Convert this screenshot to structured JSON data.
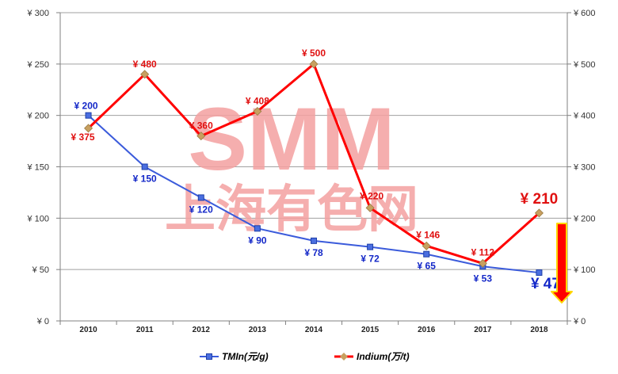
{
  "chart_data": {
    "type": "line",
    "categories": [
      "2010",
      "2011",
      "2012",
      "2013",
      "2014",
      "2015",
      "2016",
      "2017",
      "2018"
    ],
    "series": [
      {
        "name": "TMIn(元/g)",
        "axis": "left",
        "color": "#3b5bdb",
        "marker_color": "#1e3fa8",
        "values": [
          200,
          150,
          120,
          90,
          78,
          72,
          65,
          53,
          47
        ],
        "labels": [
          "¥ 200",
          "¥ 150",
          "¥ 120",
          "¥ 90",
          "¥ 78",
          "¥ 72",
          "¥ 65",
          "¥ 53",
          "¥ 47"
        ]
      },
      {
        "name": "Indium(万/t)",
        "axis": "right",
        "color": "#ff0000",
        "marker_color": "#c8a060",
        "values": [
          375,
          480,
          360,
          408,
          500,
          220,
          146,
          112,
          210
        ],
        "labels": [
          "¥ 375",
          "¥ 480",
          "¥ 360",
          "¥ 408",
          "¥ 500",
          "¥ 220",
          "¥ 146",
          "¥ 112",
          "¥ 210"
        ]
      }
    ],
    "y_left": {
      "lim": [
        0,
        300
      ],
      "ticks": [
        0,
        50,
        100,
        150,
        200,
        250,
        300
      ],
      "tick_labels": [
        "¥ 0",
        "¥ 50",
        "¥ 100",
        "¥ 150",
        "¥ 200",
        "¥ 250",
        "¥ 300"
      ]
    },
    "y_right": {
      "lim": [
        0,
        600
      ],
      "ticks": [
        0,
        100,
        200,
        300,
        400,
        500,
        600
      ],
      "tick_labels": [
        "¥ 0",
        "¥ 100",
        "¥ 200",
        "¥ 300",
        "¥ 400",
        "¥ 500",
        "¥ 600"
      ]
    },
    "grid": true,
    "legend_position": "bottom-center",
    "annotation": "down-arrow",
    "annotation_colors": {
      "fill": "#ff0000",
      "edge": "#ffd700"
    }
  },
  "watermark": {
    "line1": "SMM",
    "line2": "上海有色网",
    "color": "#f4a0a0"
  }
}
